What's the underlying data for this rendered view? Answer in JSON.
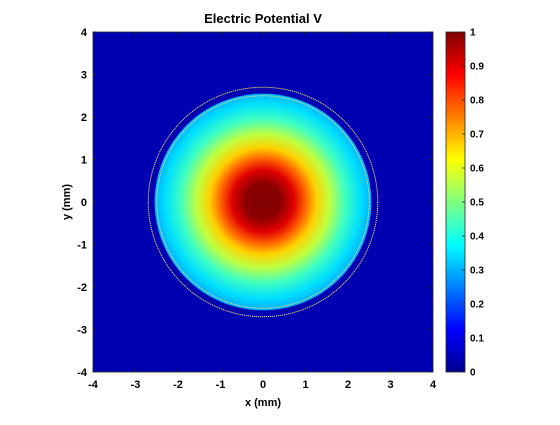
{
  "chart_data": {
    "type": "heatmap",
    "title": "Electric Potential V",
    "xlabel": "x (mm)",
    "ylabel": "y (mm)",
    "xlim": [
      -4,
      4
    ],
    "ylim": [
      -4,
      4
    ],
    "xticks": [
      -4,
      -3,
      -2,
      -1,
      0,
      1,
      2,
      3,
      4
    ],
    "yticks": [
      -4,
      -3,
      -2,
      -1,
      0,
      1,
      2,
      3,
      4
    ],
    "colormap": "jet",
    "clim": [
      0,
      1
    ],
    "colorbar_ticks": [
      0,
      0.1,
      0.2,
      0.3,
      0.4,
      0.5,
      0.6,
      0.7,
      0.8,
      0.9,
      1
    ],
    "colorbar_labels": [
      "0",
      "0.1",
      "0.2",
      "0.3",
      "0.4",
      "0.5",
      "0.6",
      "0.7",
      "0.8",
      "0.9",
      "1"
    ],
    "field": {
      "description_values": "radial potential, V = 1 at center, ~0 at boundary",
      "center": [
        0,
        0
      ],
      "core_radius_mm": 0.35,
      "outer_radius_mm": 2.55
    },
    "circles": [
      {
        "center": [
          0,
          0
        ],
        "radius_mm": 2.5,
        "color": "#e8e070"
      },
      {
        "center": [
          0,
          0
        ],
        "radius_mm": 2.7,
        "color": "#e8e070"
      }
    ],
    "background_value": 0
  }
}
